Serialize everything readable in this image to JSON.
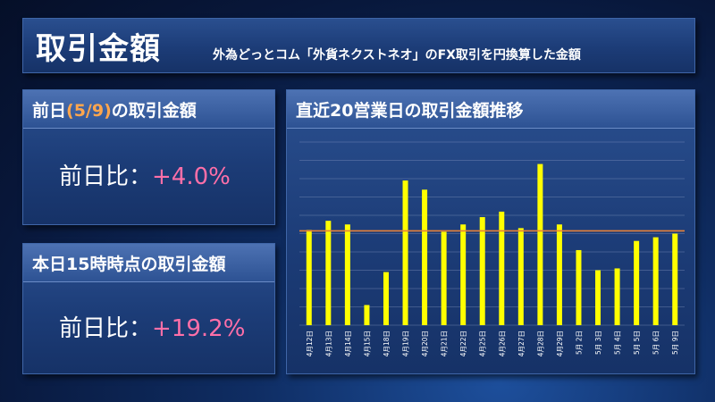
{
  "header": {
    "title": "取引金額",
    "subtitle": "外為どっとコム「外貨ネクストネオ」のFX取引を円換算した金額"
  },
  "previous_day_panel": {
    "heading_prefix": "前日",
    "heading_date": "(5/9)",
    "heading_suffix": "の取引金額",
    "ratio_label": "前日比：",
    "ratio_value": "+4.0%"
  },
  "today_panel": {
    "heading": "本日15時時点の取引金額",
    "ratio_label": "前日比：",
    "ratio_value": "+19.2%"
  },
  "chart_panel": {
    "heading": "直近20営業日の取引金額推移"
  },
  "colors": {
    "bar": "#ffff00",
    "average_line": "#e8823a",
    "grid": "#8a9cc4",
    "ratio_value": "#ff6fa8",
    "date_highlight": "#ffa64d"
  },
  "chart_data": {
    "type": "bar",
    "title": "直近20営業日の取引金額推移",
    "xlabel": "",
    "ylabel": "",
    "categories": [
      "4月12日",
      "4月13日",
      "4月14日",
      "4月15日",
      "4月18日",
      "4月19日",
      "4月20日",
      "4月21日",
      "4月22日",
      "4月25日",
      "4月26日",
      "4月27日",
      "4月28日",
      "4月29日",
      "5月 2日",
      "5月 3日",
      "5月 4日",
      "5月 5日",
      "5月 6日",
      "5月 9日"
    ],
    "values": [
      5.2,
      5.7,
      5.5,
      1.1,
      2.9,
      7.9,
      7.4,
      5.1,
      5.5,
      5.9,
      6.2,
      5.3,
      8.8,
      5.5,
      4.1,
      3.0,
      3.1,
      4.6,
      4.8,
      5.0
    ],
    "average_line": 5.15,
    "ylim": [
      0,
      10
    ],
    "gridlines": 10,
    "grid": true,
    "axis_values_shown": false
  }
}
